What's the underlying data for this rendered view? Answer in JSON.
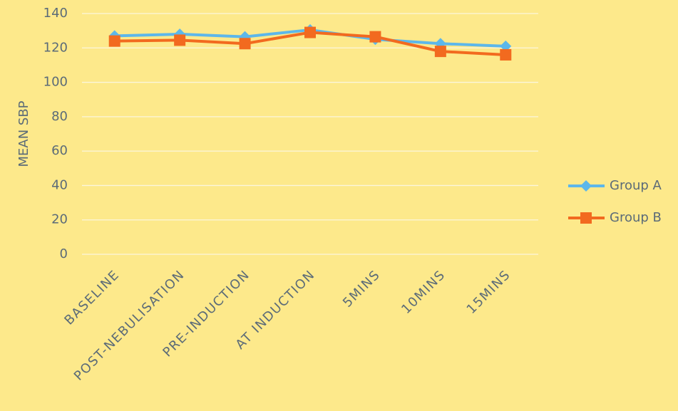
{
  "chart_data": {
    "type": "line",
    "y_label": "MEAN SBP",
    "categories": [
      "BASELINE",
      "POST-NEBULISATION",
      "PRE-INDUCTION",
      "AT INDUCTION",
      "5MINS",
      "10MINS",
      "15MINS"
    ],
    "series": [
      {
        "name": "Group A",
        "color": "#5db7ea",
        "marker": "diamond",
        "values": [
          127,
          128,
          126.5,
          130.5,
          125,
          122.5,
          121
        ]
      },
      {
        "name": "Group B",
        "color": "#f26a1f",
        "marker": "square",
        "values": [
          124,
          124.5,
          122.5,
          129,
          126.5,
          118,
          116
        ]
      }
    ],
    "ylim": [
      0,
      140
    ],
    "yticks": [
      0,
      20,
      40,
      60,
      80,
      100,
      120,
      140
    ],
    "grid": true,
    "legend": "right"
  }
}
